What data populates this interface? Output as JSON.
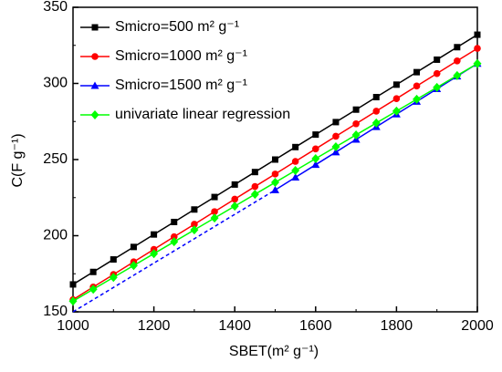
{
  "chart_data": {
    "type": "line",
    "x_label": "SBET(m² g⁻¹)",
    "y_label": "C(F g⁻¹)",
    "x": [
      1000,
      1050,
      1100,
      1150,
      1200,
      1250,
      1300,
      1350,
      1400,
      1450,
      1500,
      1550,
      1600,
      1650,
      1700,
      1750,
      1800,
      1850,
      1900,
      1950,
      2000
    ],
    "series": [
      {
        "name": "Smicro=500 m² g⁻¹",
        "color": "#000000",
        "marker": "square",
        "values": [
          168,
          176.2,
          184.4,
          192.6,
          200.8,
          209,
          217.2,
          225.4,
          233.6,
          241.8,
          250,
          258.2,
          266.4,
          274.6,
          282.8,
          291,
          299.2,
          307.4,
          315.6,
          323.8,
          332
        ]
      },
      {
        "name": "Smicro=1000 m² g⁻¹",
        "color": "#ff0000",
        "marker": "circle",
        "values": [
          158,
          166.3,
          174.5,
          182.8,
          191,
          199.3,
          207.5,
          215.8,
          224,
          232.3,
          240.5,
          248.8,
          257,
          265.3,
          273.5,
          281.8,
          290,
          298.3,
          306.5,
          314.8,
          323
        ]
      },
      {
        "name": "Smicro=1500 m² g⁻¹",
        "color": "#0000ff",
        "marker": "triangle",
        "values": [
          null,
          null,
          null,
          null,
          null,
          null,
          null,
          null,
          null,
          null,
          230,
          238.3,
          246.6,
          254.9,
          263.2,
          271.5,
          279.8,
          288.1,
          296.4,
          304.7,
          313
        ]
      },
      {
        "name": "univariate linear regression",
        "color": "#00ff00",
        "marker": "diamond",
        "values": [
          157,
          164.8,
          172.6,
          180.4,
          188.2,
          196,
          203.8,
          211.6,
          219.4,
          227.2,
          235,
          242.8,
          250.6,
          258.4,
          266.2,
          274,
          281.8,
          289.6,
          297.4,
          305.2,
          313
        ]
      },
      {
        "color": "#0000ff",
        "dashed": true,
        "x": [
          1000,
          1500
        ],
        "values": [
          150,
          230
        ]
      }
    ],
    "xlim": [
      1000,
      2000
    ],
    "xticks": [
      1000,
      1200,
      1400,
      1600,
      1800,
      2000
    ],
    "ylim": [
      150,
      350
    ],
    "yticks": [
      150,
      200,
      250,
      300,
      350
    ],
    "legend": "upper left"
  }
}
